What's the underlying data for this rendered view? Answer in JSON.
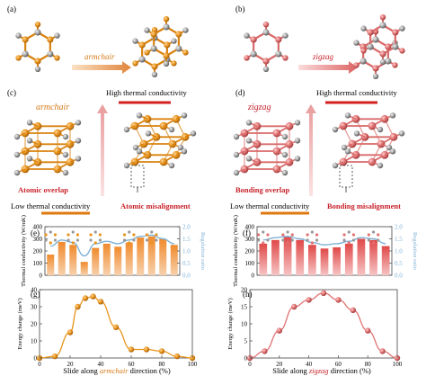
{
  "panels": {
    "a": {
      "letter": "(a)",
      "arrow_label": "armchair"
    },
    "b": {
      "letter": "(b)",
      "arrow_label": "zigzag"
    },
    "c": {
      "letter": "(c)",
      "italic_label": "armchair",
      "high_label": "High thermal conductivity",
      "low_label": "Low thermal conductivity",
      "left_caption": "Atomic overlap",
      "right_caption": "Atomic misalignment"
    },
    "d": {
      "letter": "(d)",
      "italic_label": "zigzag",
      "high_label": "High thermal conductivity",
      "low_label": "Low thermal conductivity",
      "left_caption": "Bonding overlap",
      "right_caption": "Bonding misalignment"
    },
    "e": {
      "letter": "(e)"
    },
    "f": {
      "letter": "(f)"
    },
    "g": {
      "letter": "(g)",
      "xlabel_prefix": "Slide along ",
      "xlabel_italic": "armchair",
      "xlabel_suffix": " direction (%)"
    },
    "h": {
      "letter": "(h)",
      "xlabel_prefix": "Slide along ",
      "xlabel_italic": "zigzag",
      "xlabel_suffix": " direction (%)"
    }
  },
  "colors": {
    "orange_atom": "#e8951c",
    "pink_atom": "#e07272",
    "grey_atom": "#9a9a9a",
    "bond_orange": "#d9820f",
    "bond_pink": "#d96a6a",
    "blue_curve": "#7fb2d6",
    "red_line": "#d42020",
    "orange_line": "#e07a10",
    "arrow_pink": "#e8a0a0",
    "label_orange": "#d67b1a",
    "label_red": "#c8232c"
  },
  "chart_data": [
    {
      "panel": "e",
      "type": "bar",
      "ylabel": "Thermal conductivity (W/mK)",
      "y2label": "Regulation ratio",
      "ylim": [
        0,
        400
      ],
      "yticks": [
        0,
        100,
        200,
        300,
        400
      ],
      "y2lim": [
        0,
        2.0
      ],
      "y2ticks": [
        0,
        0.5,
        1.0,
        1.5,
        2.0
      ],
      "values": [
        170,
        275,
        250,
        110,
        225,
        260,
        235,
        270,
        310,
        320,
        300,
        250
      ],
      "ratio_curve": [
        1.2,
        1.45,
        1.35,
        0.8,
        1.3,
        1.4,
        1.3,
        1.45,
        1.6,
        1.65,
        1.5,
        1.3
      ]
    },
    {
      "panel": "f",
      "type": "bar",
      "ylabel": "Thermal conductivity (W/mK)",
      "y2label": "Regulation ratio",
      "ylim": [
        0,
        400
      ],
      "yticks": [
        0,
        100,
        200,
        300,
        400
      ],
      "y2lim": [
        0,
        2.0
      ],
      "y2ticks": [
        0,
        0.5,
        1.0,
        1.5,
        2.0
      ],
      "values": [
        260,
        290,
        320,
        290,
        250,
        220,
        230,
        260,
        300,
        290,
        240
      ],
      "ratio_curve": [
        1.45,
        1.55,
        1.6,
        1.5,
        1.35,
        1.25,
        1.3,
        1.4,
        1.55,
        1.5,
        1.3
      ]
    },
    {
      "panel": "g",
      "type": "line",
      "ylabel": "Energy change (meV)",
      "x": [
        0,
        10,
        20,
        25,
        30,
        35,
        40,
        50,
        60,
        70,
        80,
        90,
        100
      ],
      "y": [
        0,
        1,
        15,
        30,
        35,
        36,
        33,
        18,
        5,
        5,
        4,
        1,
        0
      ],
      "xlim": [
        0,
        100
      ],
      "xticks": [
        0,
        20,
        40,
        60,
        80,
        100
      ],
      "ylim": [
        0,
        40
      ],
      "yticks": [
        0,
        10,
        20,
        30,
        40
      ]
    },
    {
      "panel": "h",
      "type": "line",
      "ylabel": "Energy change (meV)",
      "x": [
        0,
        10,
        20,
        30,
        40,
        50,
        60,
        70,
        80,
        90,
        100
      ],
      "y": [
        0,
        2,
        8,
        15,
        17,
        19,
        17,
        14,
        8,
        2,
        0
      ],
      "xlim": [
        0,
        100
      ],
      "xticks": [
        0,
        20,
        40,
        60,
        80,
        100
      ],
      "ylim": [
        0,
        20
      ],
      "yticks": [
        0,
        5,
        10,
        15,
        20
      ]
    }
  ]
}
